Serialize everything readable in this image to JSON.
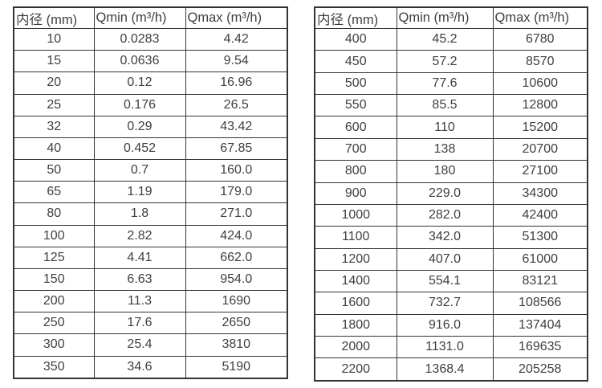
{
  "colors": {
    "background": "#ffffff",
    "border": "#333333",
    "text": "#3f3f3f"
  },
  "tables": [
    {
      "name": "flow-spec-small-diameters",
      "headers": [
        "内径 (mm)",
        "Qmin (m³/h)",
        "Qmax (m³/h)"
      ],
      "rows": [
        [
          "10",
          "0.0283",
          "4.42"
        ],
        [
          "15",
          "0.0636",
          "9.54"
        ],
        [
          "20",
          "0.12",
          "16.96"
        ],
        [
          "25",
          "0.176",
          "26.5"
        ],
        [
          "32",
          "0.29",
          "43.42"
        ],
        [
          "40",
          "0.452",
          "67.85"
        ],
        [
          "50",
          "0.7",
          "160.0"
        ],
        [
          "65",
          "1.19",
          "179.0"
        ],
        [
          "80",
          "1.8",
          "271.0"
        ],
        [
          "100",
          "2.82",
          "424.0"
        ],
        [
          "125",
          "4.41",
          "662.0"
        ],
        [
          "150",
          "6.63",
          "954.0"
        ],
        [
          "200",
          "11.3",
          "1690"
        ],
        [
          "250",
          "17.6",
          "2650"
        ],
        [
          "300",
          "25.4",
          "3810"
        ],
        [
          "350",
          "34.6",
          "5190"
        ]
      ]
    },
    {
      "name": "flow-spec-large-diameters",
      "headers": [
        "内径 (mm)",
        "Qmin (m³/h)",
        "Qmax (m³/h)"
      ],
      "rows": [
        [
          "400",
          "45.2",
          "6780"
        ],
        [
          "450",
          "57.2",
          "8570"
        ],
        [
          "500",
          "77.6",
          "10600"
        ],
        [
          "550",
          "85.5",
          "12800"
        ],
        [
          "600",
          "110",
          "15200"
        ],
        [
          "700",
          "138",
          "20700"
        ],
        [
          "800",
          "180",
          "27100"
        ],
        [
          "900",
          "229.0",
          "34300"
        ],
        [
          "1000",
          "282.0",
          "42400"
        ],
        [
          "1100",
          "342.0",
          "51300"
        ],
        [
          "1200",
          "407.0",
          "61000"
        ],
        [
          "1400",
          "554.1",
          "83121"
        ],
        [
          "1600",
          "732.7",
          "108566"
        ],
        [
          "1800",
          "916.0",
          "137404"
        ],
        [
          "2000",
          "1131.0",
          "169635"
        ],
        [
          "2200",
          "1368.4",
          "205258"
        ]
      ]
    }
  ]
}
